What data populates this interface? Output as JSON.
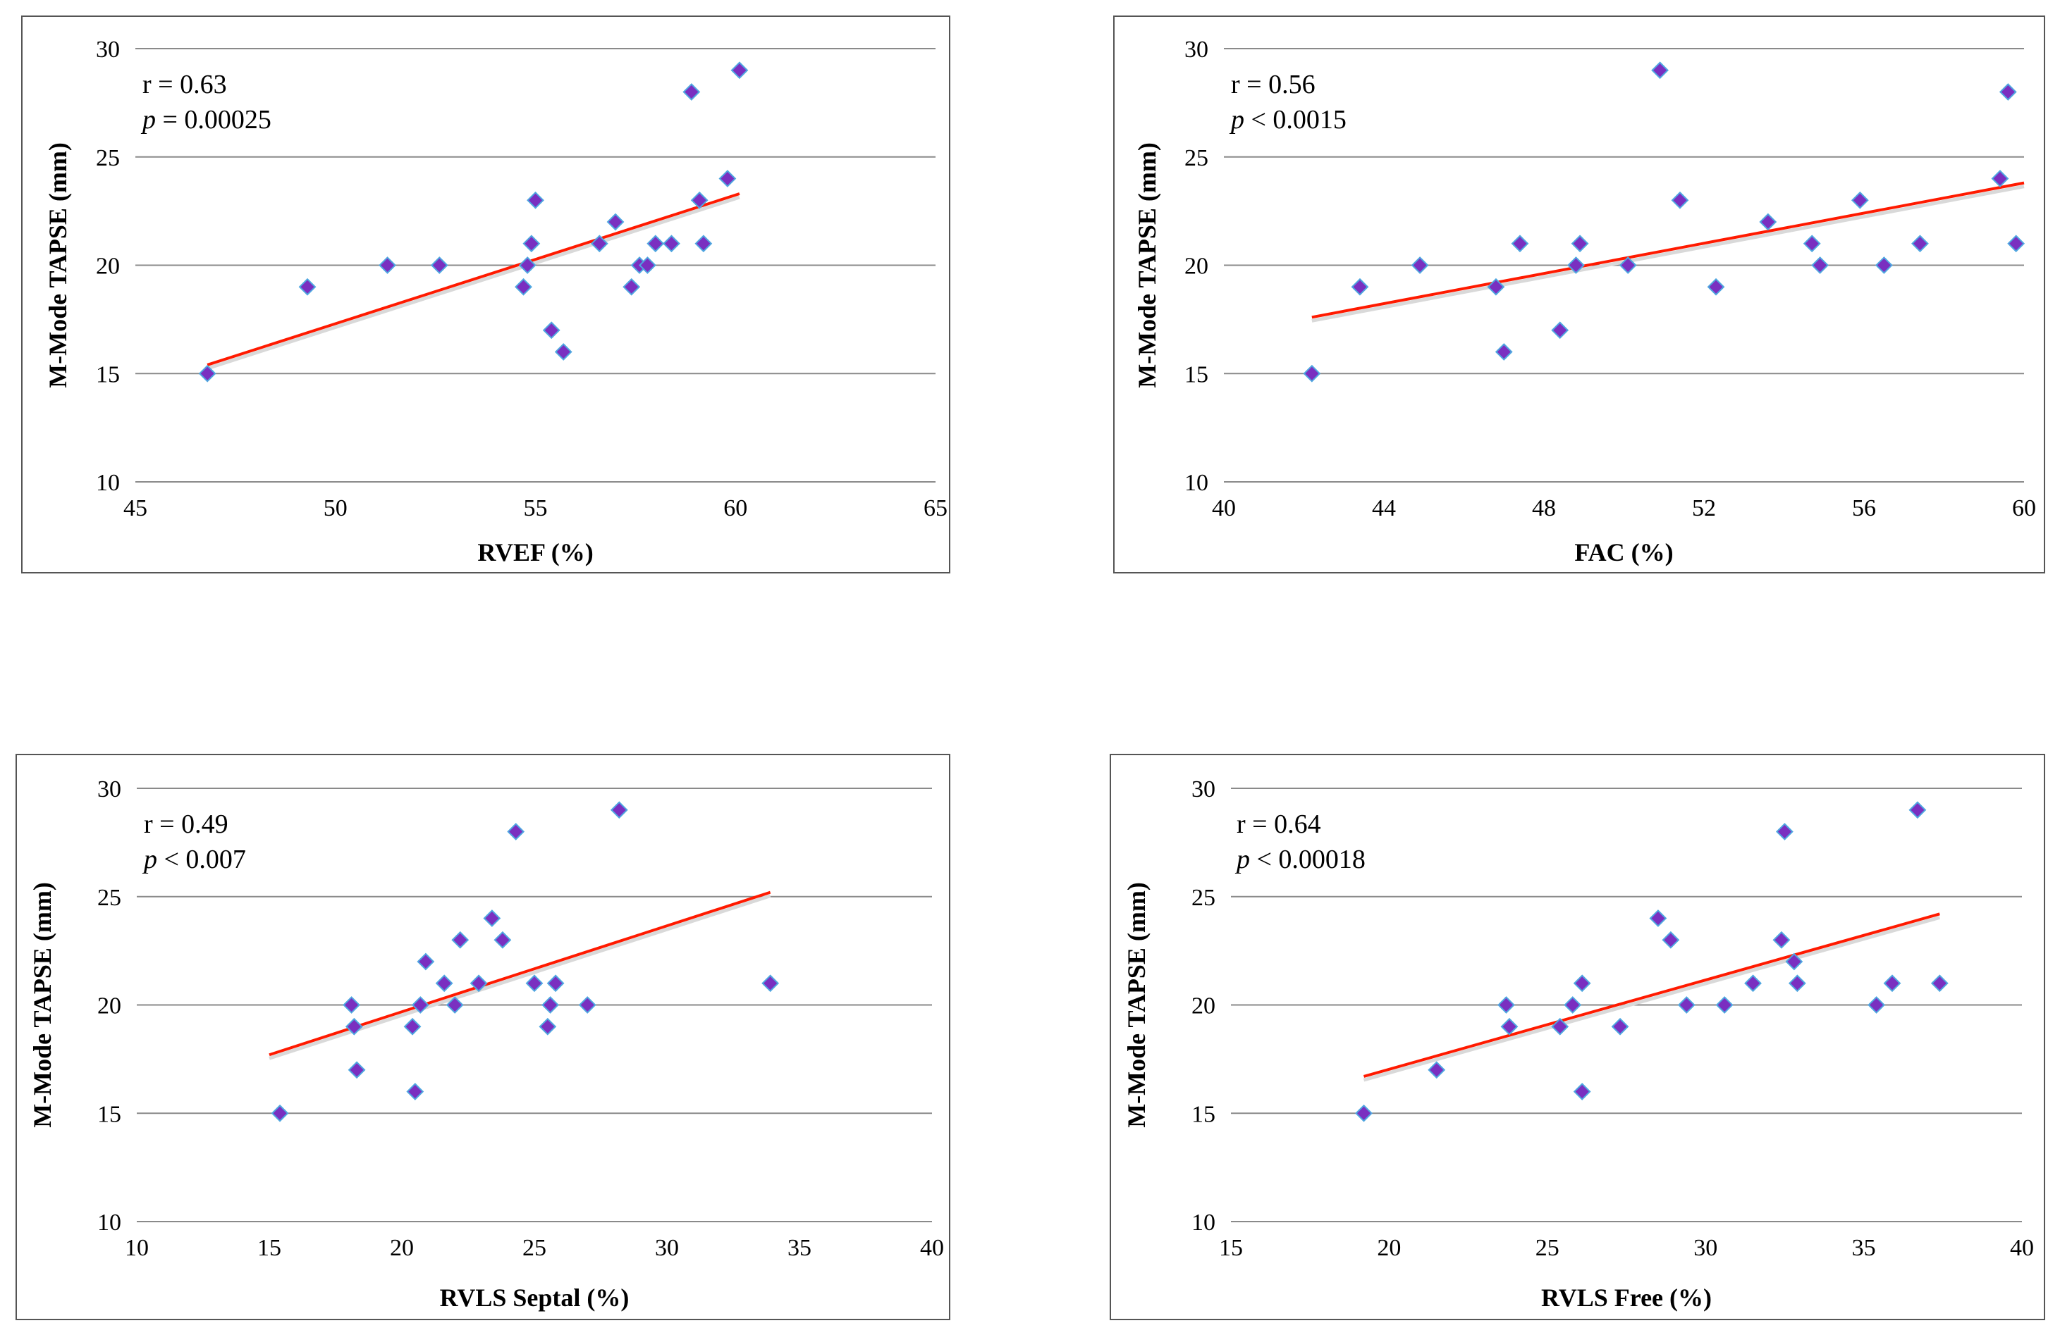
{
  "chart_data": [
    {
      "type": "scatter",
      "xlabel": "RVEF (%)",
      "ylabel": "M-Mode TAPSE (mm)",
      "xlim": [
        45,
        65
      ],
      "ylim": [
        10,
        30
      ],
      "xticks": [
        45,
        50,
        55,
        60,
        65
      ],
      "yticks": [
        10,
        15,
        20,
        25,
        30
      ],
      "grid": "horizontal",
      "annotation": {
        "r_text": "r = 0.63",
        "p_symbol": "p",
        "p_text": " = 0.00025"
      },
      "points": [
        [
          46.8,
          15
        ],
        [
          49.3,
          19
        ],
        [
          51.3,
          20
        ],
        [
          52.6,
          20
        ],
        [
          54.7,
          19
        ],
        [
          54.8,
          20
        ],
        [
          54.9,
          21
        ],
        [
          55.0,
          23
        ],
        [
          55.4,
          17
        ],
        [
          55.7,
          16
        ],
        [
          56.6,
          21
        ],
        [
          57.0,
          22
        ],
        [
          57.4,
          19
        ],
        [
          57.6,
          20
        ],
        [
          57.8,
          20
        ],
        [
          58.0,
          21
        ],
        [
          58.4,
          21
        ],
        [
          58.9,
          28
        ],
        [
          59.1,
          23
        ],
        [
          59.2,
          21
        ],
        [
          59.8,
          24
        ],
        [
          60.1,
          29
        ]
      ],
      "trendline": [
        [
          46.8,
          15.4
        ],
        [
          60.1,
          23.3
        ]
      ]
    },
    {
      "type": "scatter",
      "xlabel": "FAC (%)",
      "ylabel": "M-Mode TAPSE (mm)",
      "xlim": [
        40,
        60
      ],
      "ylim": [
        10,
        30
      ],
      "xticks": [
        40,
        44,
        48,
        52,
        56,
        60
      ],
      "yticks": [
        10,
        15,
        20,
        25,
        30
      ],
      "grid": "horizontal",
      "annotation": {
        "r_text": "r = 0.56",
        "p_symbol": "p",
        "p_text": " < 0.0015"
      },
      "points": [
        [
          42.2,
          15
        ],
        [
          43.4,
          19
        ],
        [
          44.9,
          20
        ],
        [
          46.8,
          19
        ],
        [
          47.0,
          16
        ],
        [
          47.4,
          21
        ],
        [
          48.4,
          17
        ],
        [
          48.8,
          20
        ],
        [
          48.9,
          21
        ],
        [
          50.1,
          20
        ],
        [
          50.9,
          29
        ],
        [
          51.4,
          23
        ],
        [
          52.3,
          19
        ],
        [
          53.6,
          22
        ],
        [
          54.7,
          21
        ],
        [
          54.9,
          20
        ],
        [
          55.9,
          23
        ],
        [
          56.5,
          20
        ],
        [
          57.4,
          21
        ],
        [
          59.4,
          24
        ],
        [
          59.6,
          28
        ],
        [
          59.8,
          21
        ]
      ],
      "trendline": [
        [
          42.2,
          17.6
        ],
        [
          60.0,
          23.8
        ]
      ]
    },
    {
      "type": "scatter",
      "xlabel": "RVLS Septal (%)",
      "ylabel": "M-Mode TAPSE (mm)",
      "xlim": [
        10,
        40
      ],
      "ylim": [
        10,
        30
      ],
      "xticks": [
        10,
        15,
        20,
        25,
        30,
        35,
        40
      ],
      "yticks": [
        10,
        15,
        20,
        25,
        30
      ],
      "grid": "horizontal",
      "annotation": {
        "r_text": "r = 0.49",
        "p_symbol": "p",
        "p_text": " < 0.007"
      },
      "points": [
        [
          15.4,
          15
        ],
        [
          18.1,
          20
        ],
        [
          18.2,
          19
        ],
        [
          18.3,
          17
        ],
        [
          20.4,
          19
        ],
        [
          20.5,
          16
        ],
        [
          20.7,
          20
        ],
        [
          20.9,
          22
        ],
        [
          21.6,
          21
        ],
        [
          22.0,
          20
        ],
        [
          22.2,
          23
        ],
        [
          22.9,
          21
        ],
        [
          23.4,
          24
        ],
        [
          23.8,
          23
        ],
        [
          24.3,
          28
        ],
        [
          25.0,
          21
        ],
        [
          25.5,
          19
        ],
        [
          25.6,
          20
        ],
        [
          25.8,
          21
        ],
        [
          27.0,
          20
        ],
        [
          28.2,
          29
        ],
        [
          33.9,
          21
        ]
      ],
      "trendline": [
        [
          15.0,
          17.7
        ],
        [
          33.9,
          25.2
        ]
      ]
    },
    {
      "type": "scatter",
      "xlabel": "RVLS Free (%)",
      "ylabel": "M-Mode TAPSE (mm)",
      "xlim": [
        15,
        40
      ],
      "ylim": [
        10,
        30
      ],
      "xticks": [
        15,
        20,
        25,
        30,
        35,
        40
      ],
      "yticks": [
        10,
        15,
        20,
        25,
        30
      ],
      "grid": "horizontal",
      "annotation": {
        "r_text": "r = 0.64",
        "p_symbol": "p",
        "p_text": " < 0.00018"
      },
      "points": [
        [
          19.2,
          15
        ],
        [
          21.5,
          17
        ],
        [
          23.7,
          20
        ],
        [
          23.8,
          19
        ],
        [
          25.4,
          19
        ],
        [
          25.8,
          20
        ],
        [
          26.1,
          21
        ],
        [
          26.1,
          16
        ],
        [
          27.3,
          19
        ],
        [
          28.5,
          24
        ],
        [
          28.9,
          23
        ],
        [
          29.4,
          20
        ],
        [
          30.6,
          20
        ],
        [
          31.5,
          21
        ],
        [
          32.4,
          23
        ],
        [
          32.5,
          28
        ],
        [
          32.8,
          22
        ],
        [
          32.9,
          21
        ],
        [
          35.4,
          20
        ],
        [
          35.9,
          21
        ],
        [
          36.7,
          29
        ],
        [
          37.4,
          21
        ]
      ],
      "trendline": [
        [
          19.2,
          16.7
        ],
        [
          37.4,
          24.2
        ]
      ]
    }
  ],
  "style": {
    "marker_color": "#7a2fc0",
    "marker_edge": "#4fa6e0",
    "trend_color": "#ff1a00",
    "grid_color": "#8a8a8a"
  }
}
